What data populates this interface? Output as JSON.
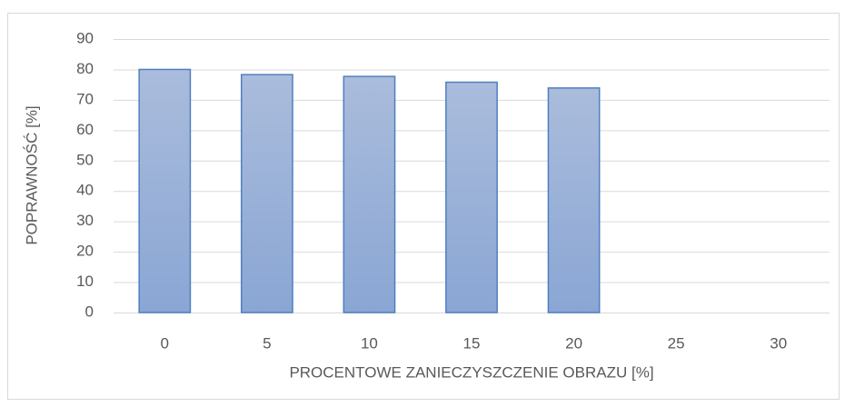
{
  "chart_data": {
    "type": "bar",
    "x_label": "PROCENTOWE ZANIECZYSZCZENIE OBRAZU [%]",
    "y_label": "POPRAWNOŚĆ  [%]",
    "categories": [
      "0",
      "5",
      "10",
      "15",
      "20",
      "25",
      "30"
    ],
    "values": [
      80,
      78.3,
      77.7,
      75.8,
      73.9,
      null,
      null
    ],
    "color": "#8faad8",
    "ylim": [
      0,
      90
    ],
    "yticks": [
      0,
      10,
      20,
      30,
      40,
      50,
      60,
      70,
      80,
      90
    ],
    "grid": true
  }
}
